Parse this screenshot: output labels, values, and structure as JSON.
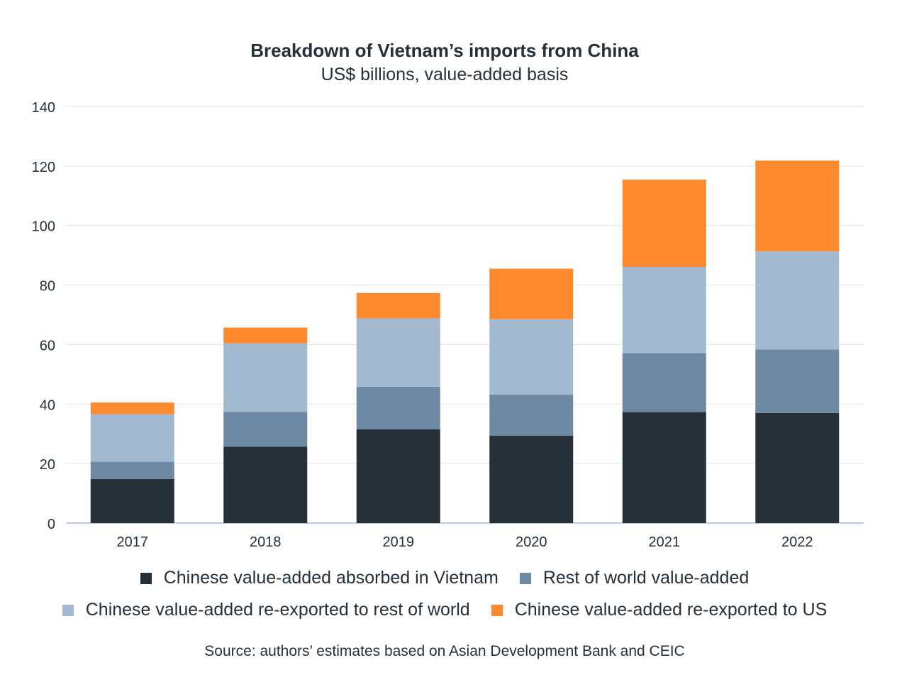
{
  "chart_data": {
    "type": "bar",
    "stacked": true,
    "title": "Breakdown of Vietnam’s imports from China",
    "subtitle": "US$ billions, value-added basis",
    "categories": [
      "2017",
      "2018",
      "2019",
      "2020",
      "2021",
      "2022"
    ],
    "ylim": [
      0,
      140
    ],
    "yticks": [
      0,
      20,
      40,
      60,
      80,
      100,
      120,
      140
    ],
    "grid": true,
    "series": [
      {
        "name": "Chinese value-added absorbed in Vietnam",
        "color": "#263039",
        "values": [
          14.8,
          25.7,
          31.5,
          29.4,
          37.3,
          37
        ]
      },
      {
        "name": "Rest of world value-added",
        "color": "#6d89a4",
        "values": [
          5.8,
          11.7,
          14.3,
          13.8,
          19.8,
          21.3
        ]
      },
      {
        "name": "Chinese value-added re-exported to rest of world",
        "color": "#a3b9d0",
        "values": [
          16,
          23,
          23,
          25.3,
          29,
          33
        ]
      },
      {
        "name": "Chinese value-added re-exported to US",
        "color": "#fd8a2f",
        "values": [
          3.9,
          5.3,
          8.5,
          17,
          29.3,
          30.5
        ]
      }
    ],
    "source": "Source: authors’ estimates based on Asian Development Bank and CEIC"
  }
}
